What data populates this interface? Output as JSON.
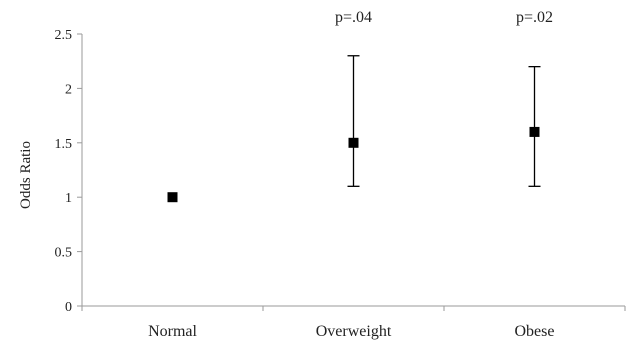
{
  "chart_data": {
    "type": "scatter",
    "title": "",
    "xlabel": "",
    "ylabel": "Odds Ratio",
    "categories": [
      "Normal",
      "Overweight",
      "Obese"
    ],
    "series": [
      {
        "values": [
          1.0,
          1.5,
          1.6
        ],
        "error_low": [
          null,
          1.1,
          1.1
        ],
        "error_high": [
          null,
          2.3,
          2.2
        ]
      }
    ],
    "annotations": [
      "",
      "p=.04",
      "p=.02"
    ],
    "ylim": [
      0,
      2.5
    ],
    "yticks": [
      0,
      0.5,
      1,
      1.5,
      2,
      2.5
    ],
    "ytick_labels": [
      "0",
      "0.5",
      "1",
      "1.5",
      "2",
      "2.5"
    ],
    "grid": false,
    "legend": "none",
    "marker": "square",
    "colors": {
      "marker": "#000000",
      "axis": "#9a9a9a",
      "text": "#222222"
    }
  }
}
